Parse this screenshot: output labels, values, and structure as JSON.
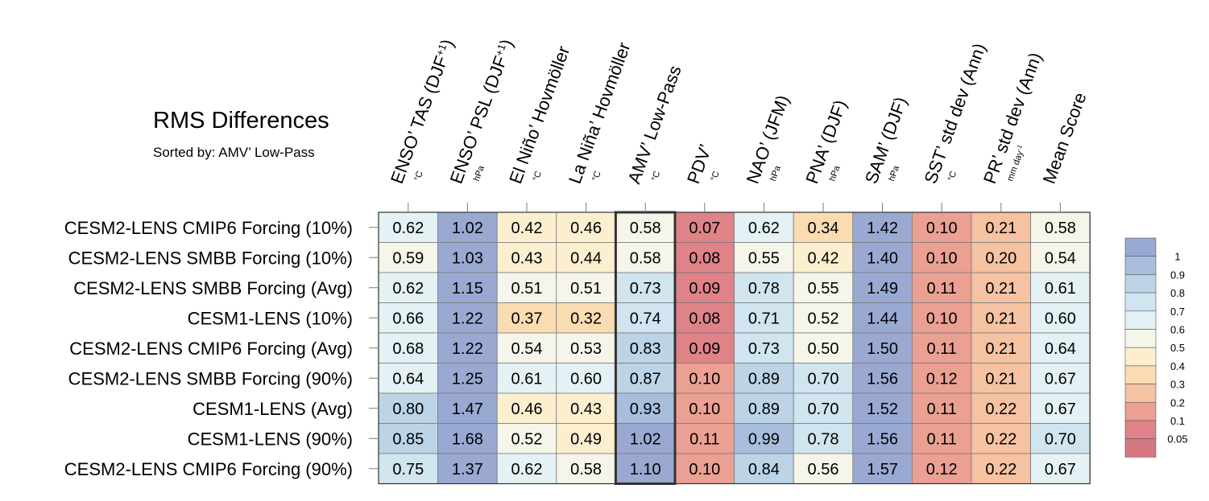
{
  "chart_data": {
    "type": "heatmap",
    "title": "RMS Differences",
    "subtitle": "Sorted by: AMV’ Low-Pass",
    "highlighted_column": "AMV’ Low-Pass",
    "columns": [
      {
        "name": "ENSO’ TAS (DJF",
        "sup": "+1",
        "close": ")",
        "unit": "°C"
      },
      {
        "name": "ENSO’ PSL (DJF",
        "sup": "+1",
        "close": ")",
        "unit": "hPa"
      },
      {
        "name": "El Niño’ Hovmöller",
        "unit": "°C"
      },
      {
        "name": "La Niña’ Hovmöller",
        "unit": "°C"
      },
      {
        "name": "AMV’ Low-Pass",
        "unit": "°C"
      },
      {
        "name": "PDV’",
        "unit": "°C"
      },
      {
        "name": "NAO’ (JFM)",
        "unit": "hPa"
      },
      {
        "name": "PNA’ (DJF)",
        "unit": "hPa"
      },
      {
        "name": "SAM’ (DJF)",
        "unit": "hPa"
      },
      {
        "name": "SST’ std dev (Ann)",
        "unit": "°C"
      },
      {
        "name": "PR’ std dev (Ann)",
        "unit": "mm day",
        "unit_sup": "-1"
      },
      {
        "name": "Mean Score",
        "unit": ""
      }
    ],
    "rows": [
      {
        "label": "CESM2-LENS CMIP6 Forcing (10%)",
        "values": [
          "0.62",
          "1.02",
          "0.42",
          "0.46",
          "0.58",
          "0.07",
          "0.62",
          "0.34",
          "1.42",
          "0.10",
          "0.21",
          "0.58"
        ]
      },
      {
        "label": "CESM2-LENS SMBB Forcing (10%)",
        "values": [
          "0.59",
          "1.03",
          "0.43",
          "0.44",
          "0.58",
          "0.08",
          "0.55",
          "0.42",
          "1.40",
          "0.10",
          "0.20",
          "0.54"
        ]
      },
      {
        "label": "CESM2-LENS SMBB Forcing (Avg)",
        "values": [
          "0.62",
          "1.15",
          "0.51",
          "0.51",
          "0.73",
          "0.09",
          "0.78",
          "0.55",
          "1.49",
          "0.11",
          "0.21",
          "0.61"
        ]
      },
      {
        "label": "CESM1-LENS (10%)",
        "values": [
          "0.66",
          "1.22",
          "0.37",
          "0.32",
          "0.74",
          "0.08",
          "0.71",
          "0.52",
          "1.44",
          "0.10",
          "0.21",
          "0.60"
        ]
      },
      {
        "label": "CESM2-LENS CMIP6 Forcing (Avg)",
        "values": [
          "0.68",
          "1.22",
          "0.54",
          "0.53",
          "0.83",
          "0.09",
          "0.73",
          "0.50",
          "1.50",
          "0.11",
          "0.21",
          "0.64"
        ]
      },
      {
        "label": "CESM2-LENS SMBB Forcing (90%)",
        "values": [
          "0.64",
          "1.25",
          "0.61",
          "0.60",
          "0.87",
          "0.10",
          "0.89",
          "0.70",
          "1.56",
          "0.12",
          "0.21",
          "0.67"
        ]
      },
      {
        "label": "CESM1-LENS (Avg)",
        "values": [
          "0.80",
          "1.47",
          "0.46",
          "0.43",
          "0.93",
          "0.10",
          "0.89",
          "0.70",
          "1.52",
          "0.11",
          "0.22",
          "0.67"
        ]
      },
      {
        "label": "CESM1-LENS (90%)",
        "values": [
          "0.85",
          "1.68",
          "0.52",
          "0.49",
          "1.02",
          "0.11",
          "0.99",
          "0.78",
          "1.56",
          "0.11",
          "0.22",
          "0.70"
        ]
      },
      {
        "label": "CESM2-LENS CMIP6 Forcing (90%)",
        "values": [
          "0.75",
          "1.37",
          "0.62",
          "0.58",
          "1.10",
          "0.10",
          "0.84",
          "0.56",
          "1.57",
          "0.12",
          "0.22",
          "0.67"
        ]
      }
    ],
    "colorbar": {
      "ticks": [
        "1",
        "0.9",
        "0.8",
        "0.7",
        "0.6",
        "0.5",
        "0.4",
        "0.3",
        "0.2",
        "0.1",
        "0.05"
      ],
      "colors": [
        "#9aa9d2",
        "#a9bedd",
        "#bcd4e6",
        "#d0e5ef",
        "#e5f2f5",
        "#f5f5ea",
        "#fcefd0",
        "#f9dcb2",
        "#f5c2a2",
        "#eba094",
        "#df8389",
        "#d57883"
      ]
    }
  }
}
